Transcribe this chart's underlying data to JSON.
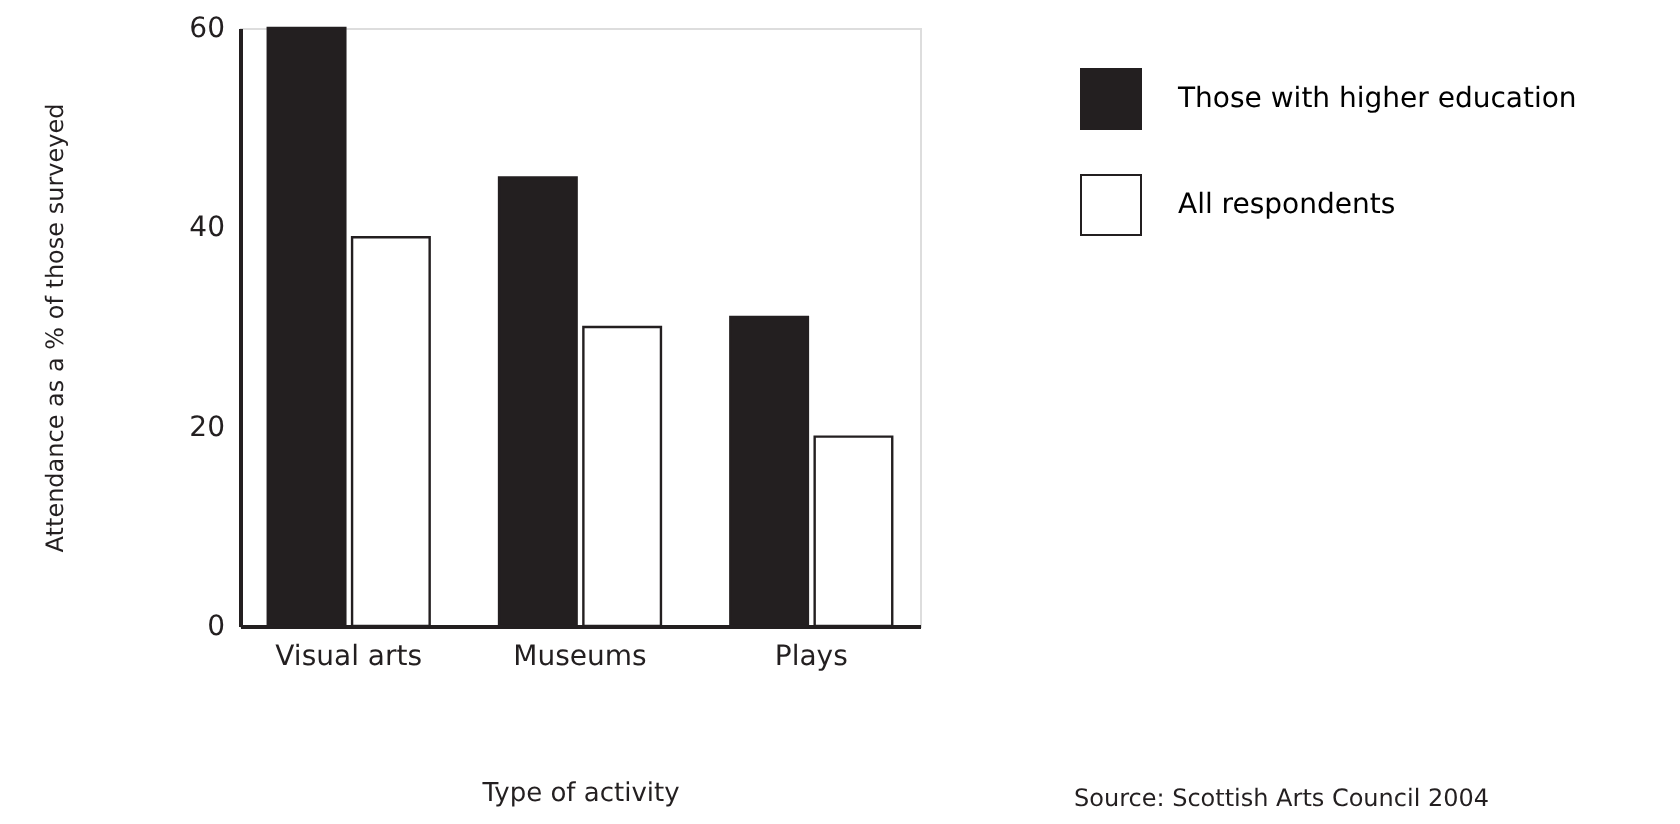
{
  "chart_data": {
    "type": "bar",
    "xlabel": "Type of activity",
    "ylabel": "Attendance as a % of those surveyed",
    "categories": [
      "Visual arts",
      "Museums",
      "Plays"
    ],
    "series": [
      {
        "name": "Those with higher education",
        "color": "#231f20",
        "values": [
          60,
          45,
          31
        ]
      },
      {
        "name": "All respondents",
        "color": "#ffffff",
        "values": [
          39,
          30,
          19
        ]
      }
    ],
    "ylim": [
      0,
      60
    ],
    "yticks": [
      0,
      20,
      40,
      60
    ],
    "grid": false,
    "legend": "top right",
    "annotations": [
      "Source: Scottish Arts Council 2004"
    ]
  }
}
